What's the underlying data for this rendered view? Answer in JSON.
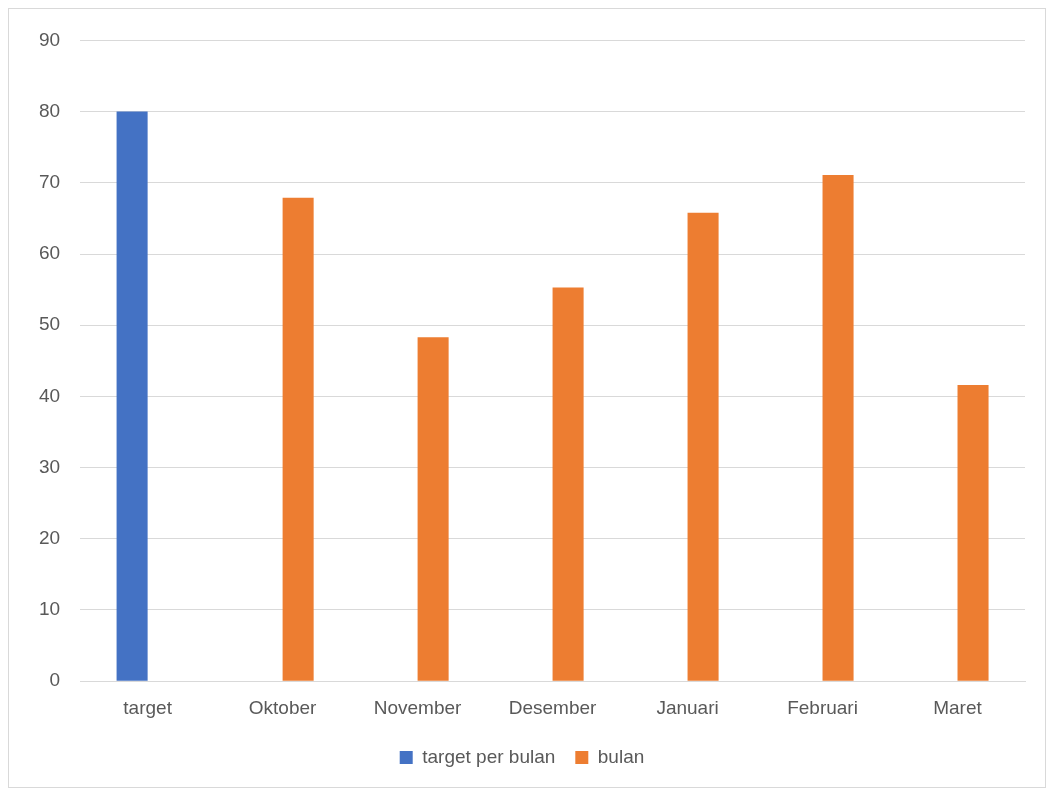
{
  "chart_data": {
    "type": "bar",
    "categories": [
      "target",
      "Oktober",
      "November",
      "Desember",
      "Januari",
      "Februari",
      "Maret"
    ],
    "series": [
      {
        "name": "target per bulan",
        "color": "#4472c4",
        "values": [
          80,
          null,
          null,
          null,
          null,
          null,
          null
        ]
      },
      {
        "name": "bulan",
        "color": "#ed7d31",
        "values": [
          null,
          67.9,
          48.3,
          55.3,
          65.8,
          71.1,
          41.6
        ]
      }
    ],
    "ylim": [
      0,
      90
    ],
    "yticks": [
      0,
      10,
      20,
      30,
      40,
      50,
      60,
      70,
      80,
      90
    ],
    "grid": "y",
    "legend": "bottom"
  }
}
